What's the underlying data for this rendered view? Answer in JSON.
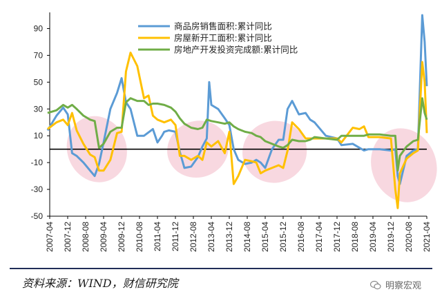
{
  "chart_data": {
    "type": "line",
    "title": "",
    "xlabel": "",
    "ylabel": "",
    "ylim": [
      -50,
      100
    ],
    "yticks": [
      -50,
      -30,
      -10,
      10,
      30,
      50,
      70,
      90
    ],
    "xticks": [
      "2007-04",
      "2007-12",
      "2008-08",
      "2009-04",
      "2009-12",
      "2010-08",
      "2011-04",
      "2011-12",
      "2012-08",
      "2013-04",
      "2013-12",
      "2014-08",
      "2015-04",
      "2015-12",
      "2016-08",
      "2017-04",
      "2017-12",
      "2018-08",
      "2019-04",
      "2019-12",
      "2020-08",
      "2021-04"
    ],
    "x_start": 2007.25,
    "x_end": 2021.25,
    "grid": false,
    "legend_position": "top-center",
    "series": [
      {
        "name": "商品房销售面积:累计同比",
        "color": "#5b9bd5",
        "x": [
          2007.17,
          2007.5,
          2007.75,
          2007.92,
          2008.08,
          2008.25,
          2008.5,
          2008.75,
          2008.92,
          2009.08,
          2009.25,
          2009.5,
          2009.75,
          2009.92,
          2010.08,
          2010.25,
          2010.5,
          2010.75,
          2011.08,
          2011.25,
          2011.42,
          2011.5,
          2011.67,
          2011.92,
          2012.08,
          2012.25,
          2012.5,
          2012.75,
          2012.92,
          2013.08,
          2013.17,
          2013.25,
          2013.5,
          2013.75,
          2013.92,
          2014.08,
          2014.25,
          2014.5,
          2014.75,
          2014.92,
          2015.08,
          2015.25,
          2015.5,
          2015.75,
          2015.92,
          2016.08,
          2016.25,
          2016.5,
          2016.75,
          2016.92,
          2017.08,
          2017.5,
          2017.92,
          2018.08,
          2018.5,
          2018.92,
          2019.08,
          2019.5,
          2019.92,
          2020.08,
          2020.17,
          2020.25,
          2020.5,
          2020.75,
          2020.92,
          2021.08,
          2021.17,
          2021.25
        ],
        "values": [
          14,
          25,
          31,
          26,
          -3,
          -5,
          -10,
          -16,
          -20,
          -11,
          5,
          30,
          42,
          53,
          35,
          30,
          10,
          10,
          15,
          5,
          10,
          13,
          14,
          13,
          -2,
          -14,
          -13,
          -6,
          2,
          8,
          50,
          33,
          30,
          23,
          18,
          0,
          -8,
          -11,
          -10,
          -8,
          -10,
          -14,
          0,
          7,
          7,
          30,
          36,
          26,
          27,
          22,
          20,
          10,
          8,
          3,
          4,
          -1,
          0,
          0,
          -1,
          0,
          -20,
          -26,
          -5,
          -1,
          0,
          100,
          80,
          47
        ]
      },
      {
        "name": "房屋新开工面积:累计同比",
        "color": "#ffc000",
        "x": [
          2007.17,
          2007.5,
          2007.75,
          2007.92,
          2008.08,
          2008.25,
          2008.5,
          2008.75,
          2008.92,
          2009.08,
          2009.25,
          2009.5,
          2009.75,
          2009.92,
          2010.08,
          2010.25,
          2010.5,
          2010.75,
          2010.92,
          2011.08,
          2011.25,
          2011.5,
          2011.75,
          2011.92,
          2012.08,
          2012.25,
          2012.5,
          2012.75,
          2012.92,
          2013.08,
          2013.25,
          2013.5,
          2013.75,
          2013.92,
          2014.08,
          2014.25,
          2014.5,
          2014.75,
          2014.92,
          2015.08,
          2015.25,
          2015.5,
          2015.75,
          2015.92,
          2016.08,
          2016.25,
          2016.5,
          2016.75,
          2016.92,
          2017.08,
          2017.5,
          2017.92,
          2018.08,
          2018.5,
          2018.75,
          2018.92,
          2019.08,
          2019.5,
          2019.92,
          2020.08,
          2020.17,
          2020.25,
          2020.5,
          2020.75,
          2020.92,
          2021.08,
          2021.17,
          2021.25
        ],
        "values": [
          15,
          20,
          22,
          18,
          27,
          14,
          4,
          -4,
          -6,
          -16,
          -16,
          -8,
          12,
          13,
          58,
          72,
          62,
          38,
          40,
          25,
          22,
          20,
          22,
          18,
          -5,
          -5,
          -8,
          -5,
          -8,
          5,
          2,
          6,
          -3,
          13,
          -26,
          -20,
          -8,
          -9,
          -10,
          -18,
          -16,
          -14,
          -12,
          -14,
          -1,
          20,
          15,
          8,
          8,
          8,
          8,
          8,
          5,
          16,
          15,
          17,
          9,
          9,
          8,
          -30,
          -44,
          -18,
          -7,
          -3,
          -1,
          65,
          50,
          12
        ]
      },
      {
        "name": "房地产开发投资完成额:累计同比",
        "color": "#70ad47",
        "x": [
          2007.17,
          2007.5,
          2007.75,
          2007.92,
          2008.08,
          2008.25,
          2008.5,
          2008.75,
          2008.92,
          2009.08,
          2009.25,
          2009.5,
          2009.75,
          2009.92,
          2010.08,
          2010.25,
          2010.5,
          2010.75,
          2010.92,
          2011.08,
          2011.25,
          2011.5,
          2011.75,
          2011.92,
          2012.08,
          2012.25,
          2012.5,
          2012.75,
          2012.92,
          2013.08,
          2013.25,
          2013.5,
          2013.75,
          2013.92,
          2014.08,
          2014.25,
          2014.5,
          2014.75,
          2014.92,
          2015.08,
          2015.25,
          2015.5,
          2015.75,
          2015.92,
          2016.08,
          2016.25,
          2016.5,
          2016.75,
          2016.92,
          2017.08,
          2017.5,
          2017.92,
          2018.08,
          2018.5,
          2018.92,
          2019.08,
          2019.5,
          2019.92,
          2020.08,
          2020.17,
          2020.25,
          2020.5,
          2020.75,
          2020.92,
          2021.08,
          2021.17,
          2021.25
        ],
        "values": [
          27,
          29,
          33,
          31,
          33,
          30,
          25,
          22,
          21,
          1,
          4,
          13,
          16,
          16,
          35,
          38,
          36,
          36,
          33,
          34,
          34,
          33,
          31,
          28,
          23,
          19,
          16,
          15,
          16,
          22,
          21,
          20,
          19,
          20,
          17,
          15,
          13,
          12,
          10,
          9,
          6,
          4,
          2,
          1,
          3,
          7,
          6,
          6,
          7,
          9,
          8,
          7,
          10,
          10,
          10,
          11,
          11,
          10,
          10,
          -16,
          -5,
          2,
          6,
          7,
          38,
          27,
          22
        ]
      }
    ],
    "annotations": "pink shaded ellipses mark downturn periods"
  },
  "source_note": "资料来源：WIND，财信研究院",
  "watermark": "明察宏观"
}
